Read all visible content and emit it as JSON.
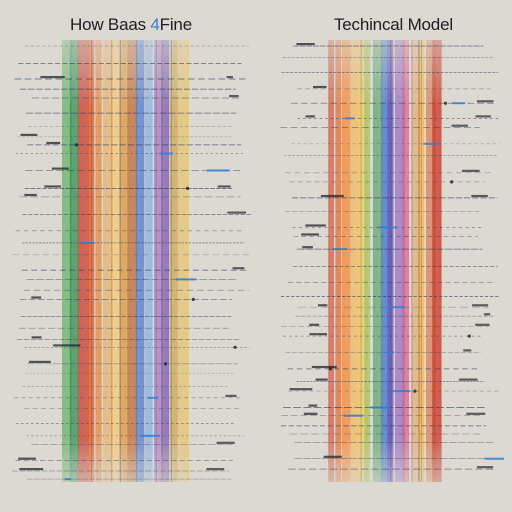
{
  "titles": {
    "left_prefix": "How Baas ",
    "left_accent": "4",
    "left_suffix": "Fine",
    "right": "Techincal Model"
  },
  "colors": {
    "background": "#dcd9d3",
    "text": "#1e1e22",
    "title_accent": "#3a7fd0",
    "dash": "#2a3a5a",
    "tick_blue": "#2f7fd4"
  },
  "panels": [
    {
      "name": "left",
      "stripes": [
        {
          "color": "#4aa84f"
        },
        {
          "color": "#2f8a4d"
        },
        {
          "color": "#c23a2a"
        },
        {
          "color": "#d95a2a"
        },
        {
          "color": "#e07a2a"
        },
        {
          "color": "#e89a35"
        },
        {
          "color": "#f0b64a"
        },
        {
          "color": "#d8903a"
        },
        {
          "color": "#b86a3a"
        },
        {
          "color": "#3a6ac8"
        },
        {
          "color": "#6a9be0"
        },
        {
          "color": "#9a5ab8"
        },
        {
          "color": "#5a3a98"
        },
        {
          "color": "#c8a04a"
        },
        {
          "color": "#e8c060"
        }
      ]
    },
    {
      "name": "right",
      "stripes": [
        {
          "color": "#d84a2a"
        },
        {
          "color": "#e06a30"
        },
        {
          "color": "#f08a3a"
        },
        {
          "color": "#f0b040"
        },
        {
          "color": "#e8c85a"
        },
        {
          "color": "#88b84a"
        },
        {
          "color": "#4a9a5a"
        },
        {
          "color": "#3a6ac8"
        },
        {
          "color": "#5a3aa8"
        },
        {
          "color": "#8a4ab8"
        },
        {
          "color": "#c84a6a"
        },
        {
          "color": "#e8904a"
        },
        {
          "color": "#f0b85a"
        },
        {
          "color": "#d86a3a"
        },
        {
          "color": "#c83a2a"
        }
      ]
    }
  ]
}
